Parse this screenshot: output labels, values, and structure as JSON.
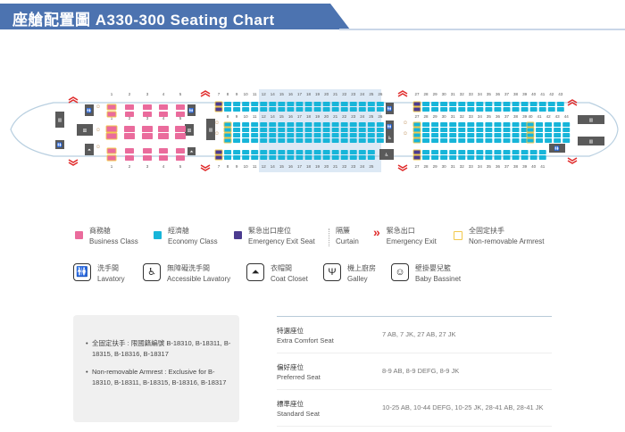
{
  "header": {
    "title": "座艙配置圖  A330-300 Seating Chart"
  },
  "colors": {
    "business": "#ea6b9c",
    "economy": "#17b5d9",
    "exit_seat": "#4b3b8f",
    "armrest": "#f2c94c",
    "exit": "#e02b2b",
    "facility": "#5a5a5a",
    "banner": "#4c73b0"
  },
  "seatmap": {
    "business": {
      "rows": [
        "1",
        "2",
        "3",
        "4",
        "5"
      ]
    },
    "economy_front": {
      "top_rows": [
        "7",
        "8",
        "9",
        "10",
        "11",
        "12",
        "14",
        "15",
        "16",
        "17",
        "18",
        "19",
        "20",
        "21",
        "22",
        "23",
        "24",
        "25",
        "26"
      ],
      "middle_rows": [
        "8",
        "9",
        "10",
        "11",
        "12",
        "14",
        "15",
        "16",
        "17",
        "18",
        "19",
        "20",
        "21",
        "22",
        "23",
        "24",
        "25",
        "26"
      ],
      "bottom_rows": [
        "7",
        "8",
        "9",
        "10",
        "11",
        "12",
        "14",
        "15",
        "16",
        "17",
        "18",
        "19",
        "20",
        "21",
        "22",
        "23",
        "24",
        "25"
      ]
    },
    "economy_rear": {
      "top_rows": [
        "27",
        "28",
        "29",
        "30",
        "31",
        "32",
        "33",
        "34",
        "35",
        "36",
        "37",
        "38",
        "39",
        "40",
        "41",
        "42",
        "43"
      ],
      "middle_rows": [
        "27",
        "28",
        "29",
        "30",
        "31",
        "32",
        "33",
        "34",
        "35",
        "36",
        "37",
        "38",
        "39",
        "40",
        "41",
        "42",
        "43",
        "44"
      ],
      "bottom_rows": [
        "27",
        "28",
        "29",
        "30",
        "31",
        "32",
        "33",
        "34",
        "35",
        "36",
        "37",
        "38",
        "39",
        "40",
        "41"
      ]
    }
  },
  "legend": {
    "business": {
      "zh": "商務艙",
      "en": "Business Class"
    },
    "economy": {
      "zh": "經濟艙",
      "en": "Economy Class"
    },
    "exit_seat": {
      "zh": "緊急出口座位",
      "en": "Emergency Exit Seat"
    },
    "curtain": {
      "zh": "隔簾",
      "en": "Curtain"
    },
    "exit": {
      "zh": "緊急出口",
      "en": "Emergency Exit"
    },
    "armrest": {
      "zh": "全固定扶手",
      "en": "Non-removable Armrest"
    },
    "lavatory": {
      "zh": "洗手間",
      "en": "Lavatory"
    },
    "accessible": {
      "zh": "無障礙洗手間",
      "en": "Accessible Lavatory"
    },
    "closet": {
      "zh": "衣帽間",
      "en": "Coat Closet"
    },
    "galley": {
      "zh": "機上廚房",
      "en": "Galley"
    },
    "bassinet": {
      "zh": "壁掛嬰兒籃",
      "en": "Baby Bassinet"
    }
  },
  "notes": [
    "全固定扶手 : 限國籍編號 B-18310, B-18311, B-18315, B-18316, B-18317",
    "Non-removable Armrest : Exclusive for B-18310, B-18311, B-18315, B-18316, B-18317"
  ],
  "seat_types": [
    {
      "zh": "特選座位",
      "en": "Extra Comfort Seat",
      "seats": "7 AB, 7 JK, 27 AB, 27 JK"
    },
    {
      "zh": "偏好座位",
      "en": "Preferred Seat",
      "seats": "8-9 AB, 8-9 DEFG, 8-9 JK"
    },
    {
      "zh": "標準座位",
      "en": "Standard Seat",
      "seats": "10-25 AB, 10-44 DEFG, 10-25 JK, 28-41 AB, 28-41 JK"
    }
  ]
}
